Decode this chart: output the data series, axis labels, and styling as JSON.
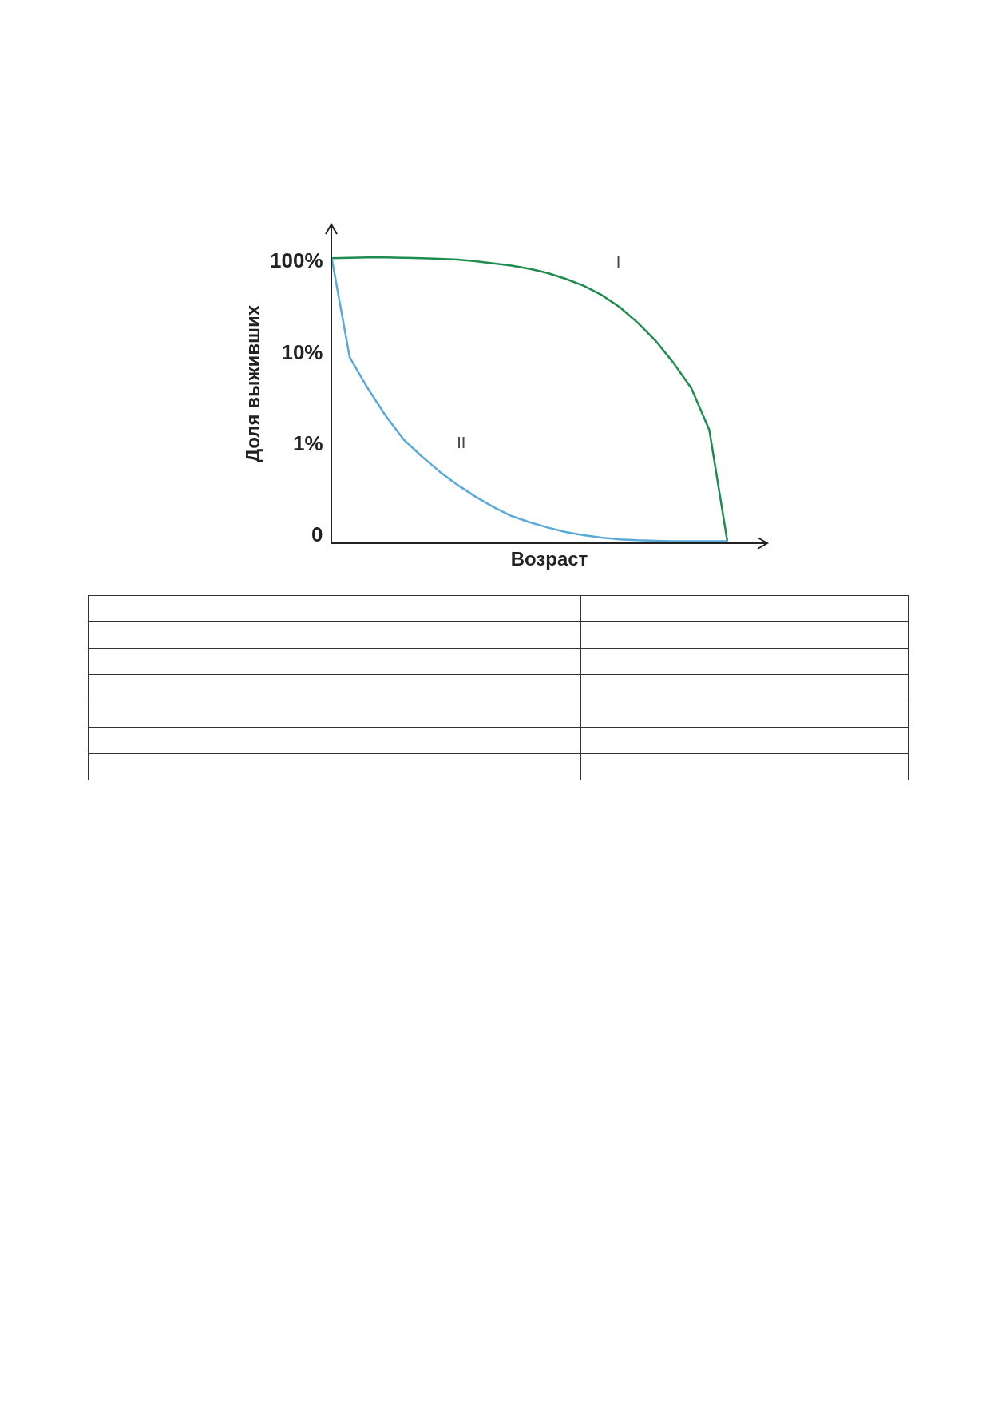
{
  "chart_data": {
    "type": "line",
    "xlabel": "Возраст",
    "ylabel": "Доля выживших",
    "log": true,
    "grid": false,
    "tick_labels": "y",
    "ylim": [
      0.08,
      250
    ],
    "yticks": [
      {
        "value": 0.1,
        "label": "0"
      },
      {
        "value": 1,
        "label": "1%"
      },
      {
        "value": 10,
        "label": "10%"
      },
      {
        "value": 100,
        "label": "100%"
      }
    ],
    "categories": [
      null,
      null,
      null,
      null,
      null,
      null,
      null,
      null,
      null,
      null,
      null,
      null,
      null,
      null,
      null,
      null,
      null,
      null,
      null,
      null,
      null,
      null,
      null
    ],
    "series": [
      {
        "name": "I",
        "color": "#1e8c4e",
        "values": [
          106,
          107,
          108,
          108,
          107,
          106,
          104,
          102,
          98,
          93,
          88,
          81,
          73,
          63,
          53,
          42,
          31,
          21,
          13.3,
          7.6,
          4.0,
          1.4,
          0.085
        ]
      },
      {
        "name": "II",
        "color": "#5aaad8",
        "values": [
          106,
          8.7,
          4.0,
          2.0,
          1.1,
          0.72,
          0.49,
          0.35,
          0.26,
          0.2,
          0.16,
          0.137,
          0.12,
          0.107,
          0.099,
          0.093,
          0.089,
          0.087,
          0.086,
          0.085,
          0.085,
          0.085,
          0.085
        ]
      }
    ]
  }
}
